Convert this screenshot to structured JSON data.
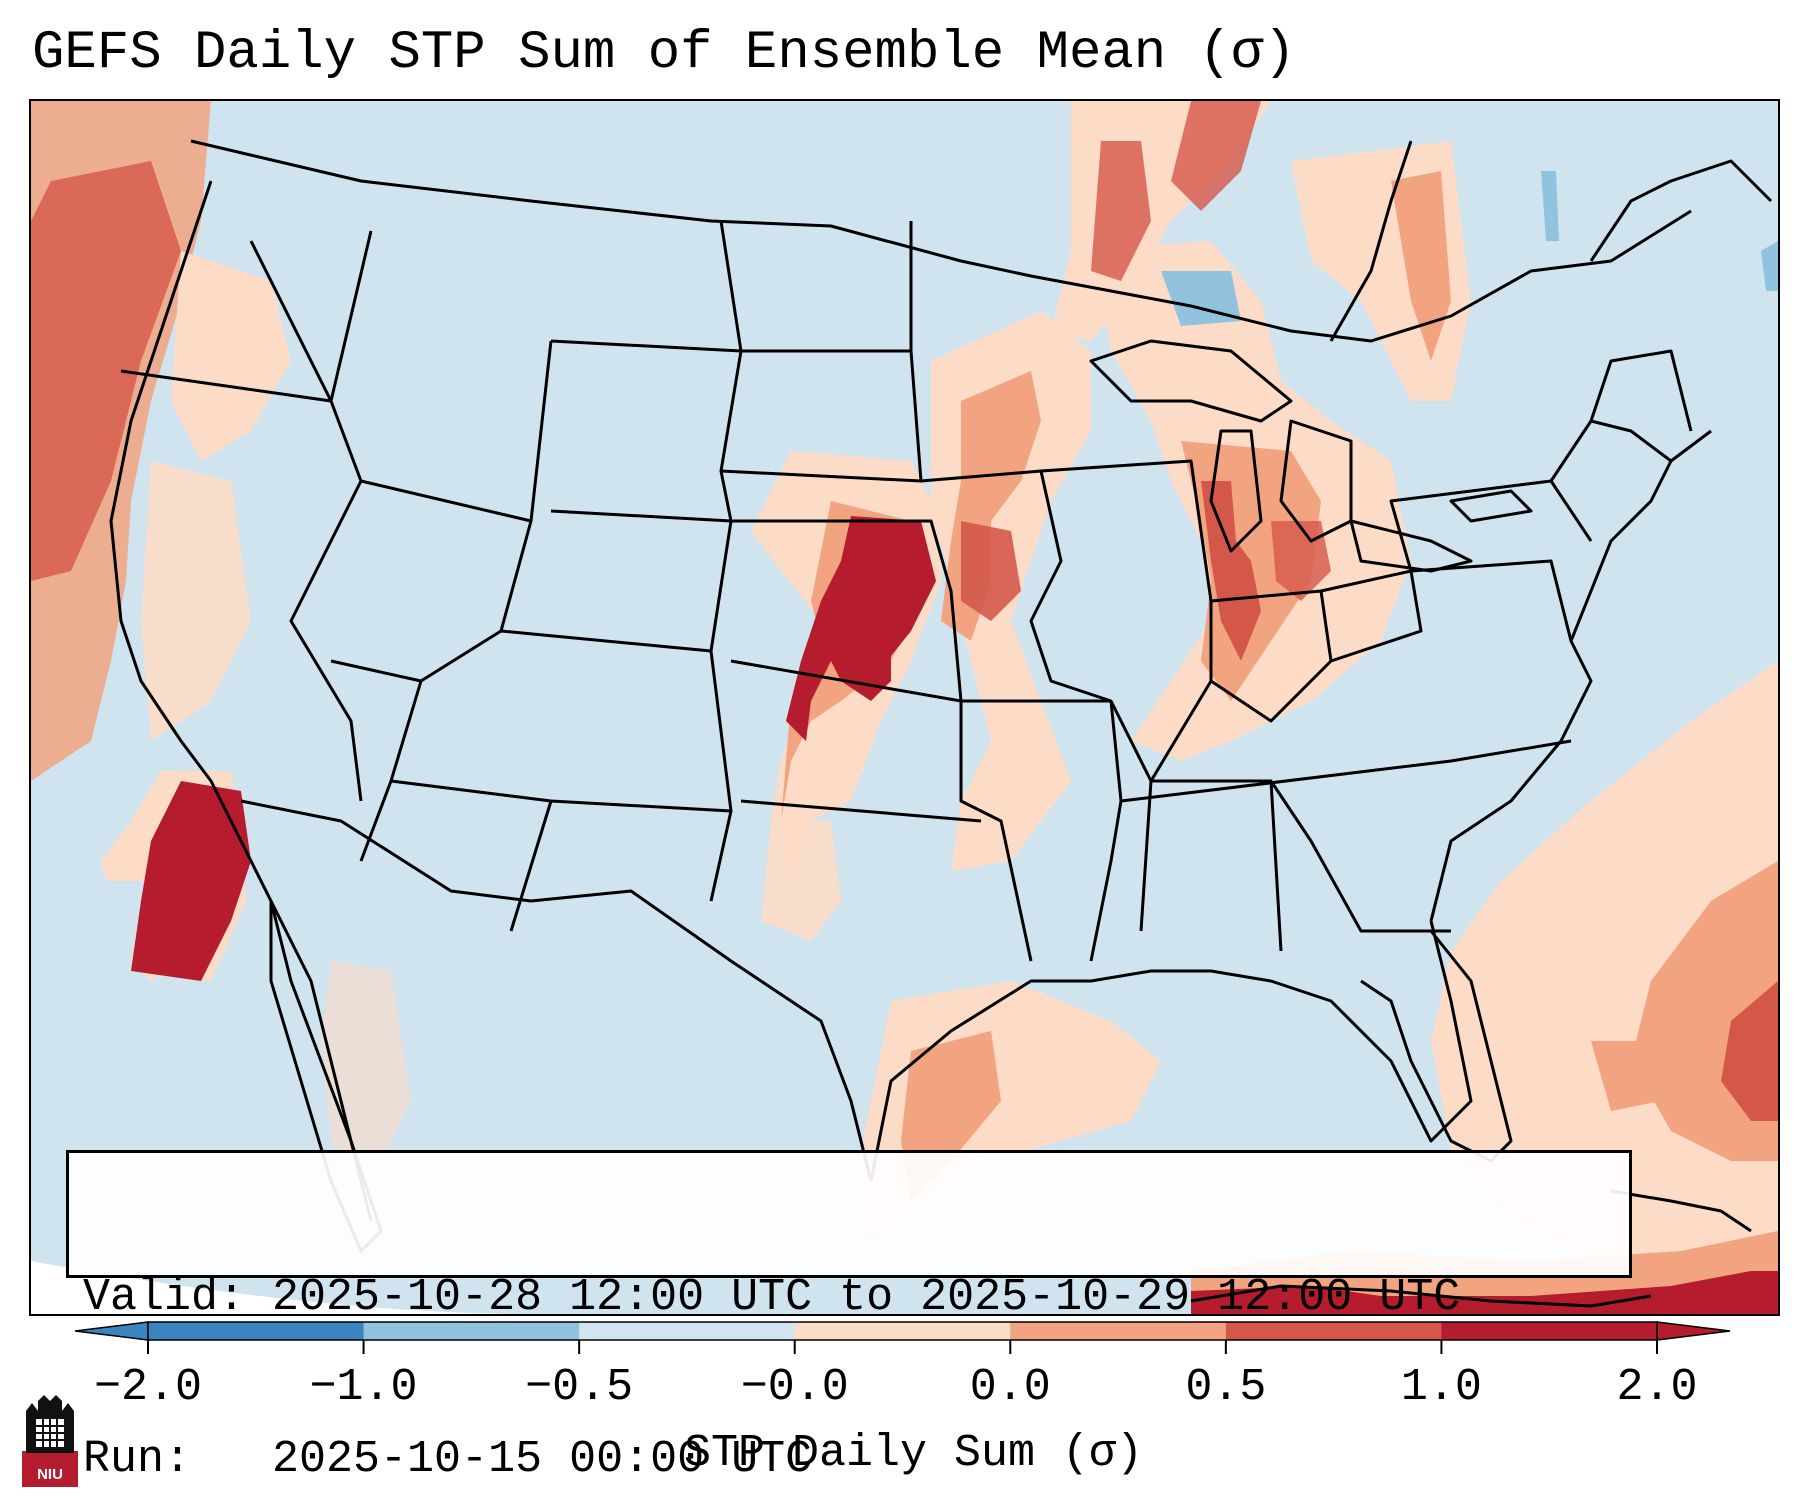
{
  "title": "GEFS Daily STP Sum of Ensemble Mean (σ)",
  "info": {
    "valid_line": "Valid: 2025-10-28 12:00 UTC to 2025-10-29 12:00 UTC",
    "run_line": "Run:   2025-10-15 00:00 UTC"
  },
  "colorbar": {
    "label": "STP Daily Sum (σ)",
    "ticks": [
      "−2.0",
      "−1.0",
      "−0.5",
      "−0.0",
      "0.0",
      "0.5",
      "1.0",
      "2.0"
    ],
    "colors": [
      "#3a84c0",
      "#91c3df",
      "#d1e5f0",
      "#f7f7f7",
      "#fcdbc7",
      "#f2a37f",
      "#d4584a",
      "#b51c2e"
    ],
    "extend": "both"
  },
  "logo": {
    "text": "NIU",
    "color": "#b51c2e"
  },
  "map_colors": {
    "background": "#d0e4f0",
    "weak_pos": "#fcdbc7",
    "mod_pos": "#f2a37f",
    "strong_pos": "#d4584a",
    "max_pos": "#b51c2e",
    "weak_neg": "#91c3df"
  }
}
